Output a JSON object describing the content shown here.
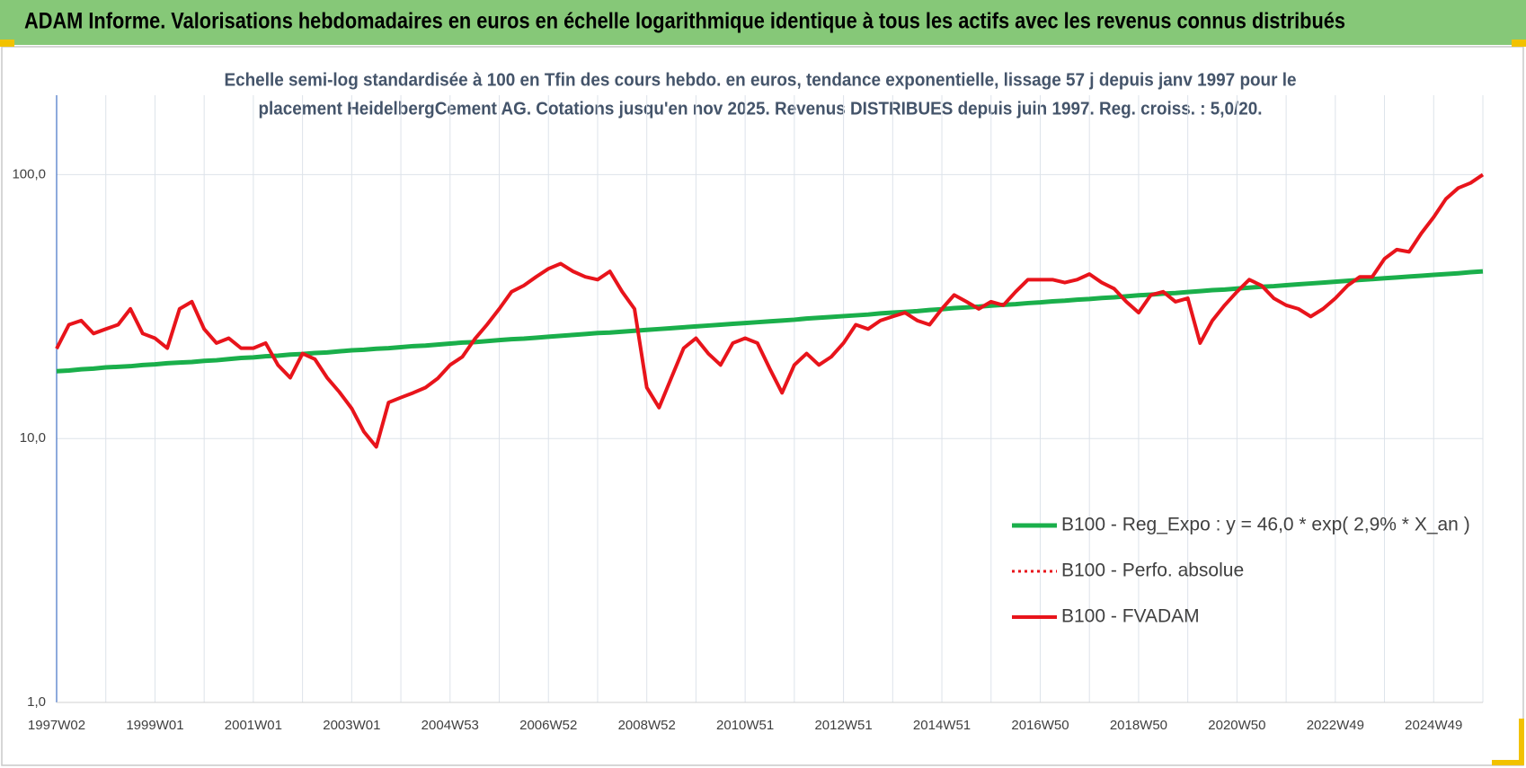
{
  "header": {
    "title": "ADAM Informe. Valorisations hebdomadaires en euros en échelle logarithmique identique à tous les actifs avec les revenus connus distribués"
  },
  "chart_data": {
    "type": "line",
    "title": [
      "Echelle semi-log standardisée à 100 en Tfin des cours hebdo. en euros, tendance exponentielle, lissage 57 j depuis janv 1997 pour le",
      "placement HeidelbergCement AG. Cotations jusqu'en nov 2025. Revenus DISTRIBUES depuis juin 1997. Reg. croiss. : 5,0/20."
    ],
    "log_scale": true,
    "grid": true,
    "legend": "lower right",
    "ylim": [
      1,
      200
    ],
    "yticks": [
      {
        "value": 1,
        "label": "1,0"
      },
      {
        "value": 10,
        "label": "10,0"
      },
      {
        "value": 100,
        "label": "100,0"
      }
    ],
    "categories": [
      "1997W02",
      null,
      null,
      null,
      null,
      null,
      null,
      null,
      "1999W01",
      null,
      null,
      null,
      null,
      null,
      null,
      null,
      "2001W01",
      null,
      null,
      null,
      null,
      null,
      null,
      null,
      "2003W01",
      null,
      null,
      null,
      null,
      null,
      null,
      null,
      "2004W53",
      null,
      null,
      null,
      null,
      null,
      null,
      null,
      "2006W52",
      null,
      null,
      null,
      null,
      null,
      null,
      null,
      "2008W52",
      null,
      null,
      null,
      null,
      null,
      null,
      null,
      "2010W51",
      null,
      null,
      null,
      null,
      null,
      null,
      null,
      "2012W51",
      null,
      null,
      null,
      null,
      null,
      null,
      null,
      "2014W51",
      null,
      null,
      null,
      null,
      null,
      null,
      null,
      "2016W50",
      null,
      null,
      null,
      null,
      null,
      null,
      null,
      "2018W50",
      null,
      null,
      null,
      null,
      null,
      null,
      null,
      "2020W50",
      null,
      null,
      null,
      null,
      null,
      null,
      null,
      "2022W49",
      null,
      null,
      null,
      null,
      null,
      null,
      null,
      "2024W49",
      null,
      null,
      null,
      null
    ],
    "series": [
      {
        "name": "B100 - Reg_Expo : y = 46,0 * exp( 2,9% *  X_an )",
        "color": "#1aaf4b",
        "style": "solid",
        "width": 5,
        "values": [
          18.0,
          18.1,
          18.3,
          18.4,
          18.6,
          18.7,
          18.8,
          19.0,
          19.1,
          19.3,
          19.4,
          19.5,
          19.7,
          19.8,
          20.0,
          20.2,
          20.3,
          20.5,
          20.6,
          20.8,
          20.9,
          21.1,
          21.2,
          21.4,
          21.6,
          21.7,
          21.9,
          22.0,
          22.2,
          22.4,
          22.5,
          22.7,
          22.9,
          23.1,
          23.2,
          23.4,
          23.6,
          23.8,
          23.9,
          24.1,
          24.3,
          24.5,
          24.7,
          24.9,
          25.1,
          25.2,
          25.4,
          25.6,
          25.8,
          26.0,
          26.2,
          26.4,
          26.6,
          26.8,
          27.0,
          27.2,
          27.4,
          27.6,
          27.8,
          28.0,
          28.2,
          28.5,
          28.7,
          28.9,
          29.1,
          29.3,
          29.5,
          29.8,
          30.0,
          30.2,
          30.4,
          30.7,
          30.9,
          31.2,
          31.4,
          31.6,
          31.9,
          32.1,
          32.3,
          32.6,
          32.8,
          33.1,
          33.3,
          33.6,
          33.8,
          34.1,
          34.3,
          34.6,
          34.9,
          35.1,
          35.4,
          35.6,
          35.9,
          36.2,
          36.5,
          36.7,
          37.0,
          37.3,
          37.6,
          37.8,
          38.1,
          38.4,
          38.7,
          39.0,
          39.3,
          39.6,
          39.9,
          40.2,
          40.5,
          40.8,
          41.1,
          41.4,
          41.7,
          42.0,
          42.3,
          42.7,
          43.0
        ]
      },
      {
        "name": "B100 - Perfo. absolue",
        "color": "#e8141b",
        "style": "dotted",
        "width": 3
      },
      {
        "name": "B100 - FVADAM",
        "color": "#e8141b",
        "style": "solid",
        "width": 4,
        "values": [
          21.9,
          27,
          28,
          25,
          26,
          27,
          31,
          25,
          24,
          22,
          31,
          33,
          26,
          23,
          24,
          22,
          22,
          23,
          19,
          17,
          21,
          20,
          17,
          15,
          13,
          10.6,
          9.3,
          13.7,
          14.3,
          14.9,
          15.6,
          16.9,
          19,
          20.4,
          23.8,
          27,
          31,
          36,
          38,
          41,
          44,
          46,
          43,
          41,
          40,
          43,
          36,
          31,
          15.6,
          13.1,
          17,
          22,
          24,
          21,
          19,
          23,
          24,
          23,
          18.4,
          14.9,
          19,
          21,
          19,
          20.4,
          23,
          27,
          26,
          28,
          29,
          30,
          28,
          27,
          31,
          35,
          33,
          31,
          33,
          32,
          36,
          40,
          40,
          40,
          39,
          40,
          42,
          39,
          37,
          33,
          30,
          35,
          36,
          33,
          34,
          23,
          28,
          32,
          36,
          40,
          38,
          34,
          32,
          31,
          29,
          31,
          34,
          38,
          41,
          41,
          48,
          52,
          51,
          60,
          69,
          81,
          89,
          93,
          100
        ]
      }
    ]
  }
}
